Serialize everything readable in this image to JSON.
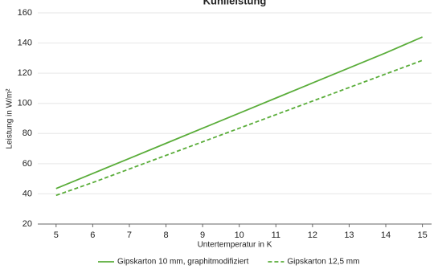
{
  "chart_data": {
    "type": "line",
    "title": "Kühlleistung",
    "x_label": "Untertemperatur in K",
    "y_label": "Leistung in W/m²",
    "x": [
      5,
      6,
      7,
      8,
      9,
      10,
      11,
      12,
      13,
      14,
      15
    ],
    "series": [
      {
        "name": "Gipskarton 10 mm, graphitmodifiziert",
        "color": "#5aad3a",
        "dash": false,
        "values": [
          43.5,
          53.5,
          63.5,
          73.5,
          83.5,
          93.5,
          103.5,
          113.5,
          123.5,
          133.5,
          144
        ]
      },
      {
        "name": "Gipskarton 12,5 mm",
        "color": "#5aad3a",
        "dash": true,
        "values": [
          39,
          47.5,
          56.5,
          65.5,
          74.5,
          83.5,
          92.5,
          101.5,
          110.5,
          119.5,
          128.5
        ]
      }
    ],
    "xlim": [
      4.5,
      15.25
    ],
    "xticks": [
      5,
      6,
      7,
      8,
      9,
      10,
      11,
      12,
      13,
      14,
      15
    ],
    "ylim": [
      20,
      160
    ],
    "yticks": [
      20,
      40,
      60,
      80,
      100,
      120,
      140,
      160
    ],
    "grid": true,
    "legend": "bottom"
  }
}
